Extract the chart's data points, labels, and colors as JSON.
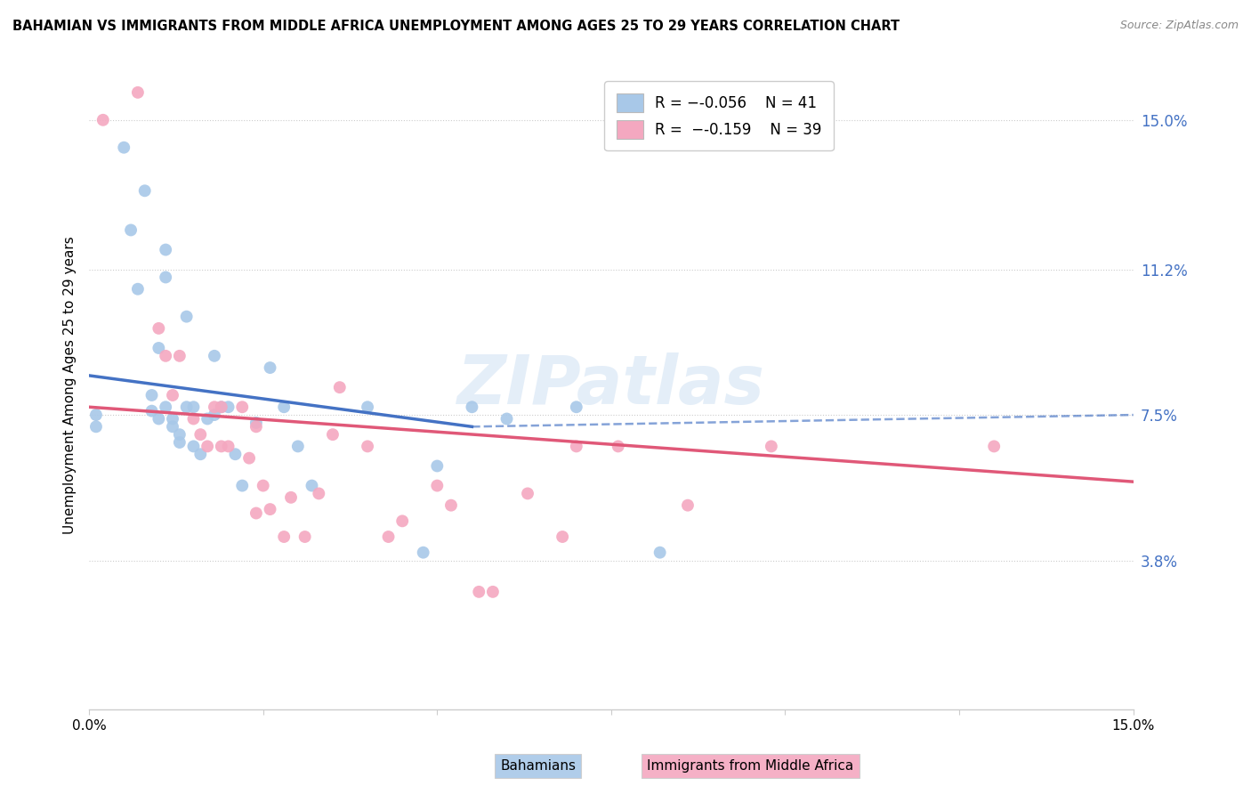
{
  "title": "BAHAMIAN VS IMMIGRANTS FROM MIDDLE AFRICA UNEMPLOYMENT AMONG AGES 25 TO 29 YEARS CORRELATION CHART",
  "source": "Source: ZipAtlas.com",
  "ylabel": "Unemployment Among Ages 25 to 29 years",
  "xlim": [
    0.0,
    0.15
  ],
  "ylim": [
    0.0,
    0.165
  ],
  "yticks": [
    0.038,
    0.075,
    0.112,
    0.15
  ],
  "ytick_labels": [
    "3.8%",
    "7.5%",
    "11.2%",
    "15.0%"
  ],
  "xticks": [
    0.0,
    0.025,
    0.05,
    0.075,
    0.1,
    0.125,
    0.15
  ],
  "xtick_labels": [
    "0.0%",
    "",
    "",
    "",
    "",
    "",
    "15.0%"
  ],
  "blue_color": "#a8c8e8",
  "pink_color": "#f4a8c0",
  "blue_line_color": "#4472c4",
  "pink_line_color": "#e05878",
  "watermark": "ZIPatlas",
  "legend_label1": "Bahamians",
  "legend_label2": "Immigrants from Middle Africa",
  "legend_r1_val": "-0.056",
  "legend_n1_val": "41",
  "legend_r2_val": "-0.159",
  "legend_n2_val": "39",
  "blue_scatter_x": [
    0.001,
    0.001,
    0.005,
    0.006,
    0.007,
    0.008,
    0.009,
    0.009,
    0.01,
    0.01,
    0.011,
    0.011,
    0.011,
    0.012,
    0.012,
    0.013,
    0.013,
    0.014,
    0.014,
    0.015,
    0.015,
    0.016,
    0.017,
    0.018,
    0.018,
    0.019,
    0.02,
    0.021,
    0.022,
    0.024,
    0.026,
    0.028,
    0.03,
    0.032,
    0.04,
    0.048,
    0.05,
    0.055,
    0.06,
    0.07,
    0.082
  ],
  "blue_scatter_y": [
    0.075,
    0.072,
    0.143,
    0.122,
    0.107,
    0.132,
    0.08,
    0.076,
    0.074,
    0.092,
    0.117,
    0.11,
    0.077,
    0.074,
    0.072,
    0.07,
    0.068,
    0.1,
    0.077,
    0.067,
    0.077,
    0.065,
    0.074,
    0.075,
    0.09,
    0.077,
    0.077,
    0.065,
    0.057,
    0.073,
    0.087,
    0.077,
    0.067,
    0.057,
    0.077,
    0.04,
    0.062,
    0.077,
    0.074,
    0.077,
    0.04
  ],
  "pink_scatter_x": [
    0.002,
    0.007,
    0.01,
    0.011,
    0.012,
    0.013,
    0.015,
    0.016,
    0.017,
    0.018,
    0.019,
    0.019,
    0.02,
    0.022,
    0.023,
    0.024,
    0.024,
    0.025,
    0.026,
    0.028,
    0.029,
    0.031,
    0.033,
    0.035,
    0.036,
    0.04,
    0.043,
    0.045,
    0.05,
    0.052,
    0.056,
    0.058,
    0.063,
    0.068,
    0.07,
    0.076,
    0.086,
    0.098,
    0.13
  ],
  "pink_scatter_y": [
    0.15,
    0.157,
    0.097,
    0.09,
    0.08,
    0.09,
    0.074,
    0.07,
    0.067,
    0.077,
    0.067,
    0.077,
    0.067,
    0.077,
    0.064,
    0.072,
    0.05,
    0.057,
    0.051,
    0.044,
    0.054,
    0.044,
    0.055,
    0.07,
    0.082,
    0.067,
    0.044,
    0.048,
    0.057,
    0.052,
    0.03,
    0.03,
    0.055,
    0.044,
    0.067,
    0.067,
    0.052,
    0.067,
    0.067
  ],
  "blue_solid_trend": {
    "x_start": 0.0,
    "x_end": 0.055,
    "y_start": 0.085,
    "y_end": 0.072
  },
  "blue_dashed_trend": {
    "x_start": 0.055,
    "x_end": 0.15,
    "y_start": 0.072,
    "y_end": 0.075
  },
  "pink_solid_trend": {
    "x_start": 0.0,
    "x_end": 0.15,
    "y_start": 0.077,
    "y_end": 0.058
  }
}
